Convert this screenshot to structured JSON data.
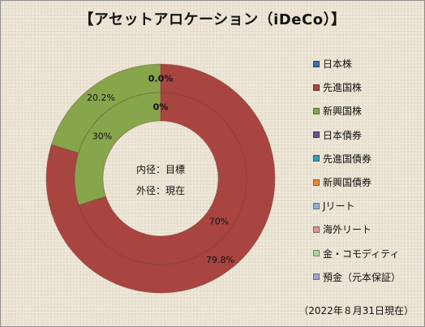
{
  "chart_data": {
    "type": "pie",
    "title": "【アセットアロケーション（iDeCo）】",
    "legend_position": "right",
    "categories": [
      "日本株",
      "先進国株",
      "新興国株",
      "日本債券",
      "先進国債券",
      "新興国債券",
      "Jリート",
      "海外リート",
      "金・コモディティ",
      "預金（元本保証）"
    ],
    "colors": [
      "#3f6fa8",
      "#a94541",
      "#87a54a",
      "#6c4f8e",
      "#3a9bbf",
      "#e38a3b",
      "#94aed6",
      "#d99693",
      "#b4d29b",
      "#a3a3d1"
    ],
    "series": [
      {
        "ring": "outer",
        "values": [
          0.0,
          79.8,
          20.2,
          0,
          0,
          0,
          0,
          0,
          0,
          0
        ],
        "labels": [
          "0.0%",
          "79.8%",
          "20.2%"
        ]
      },
      {
        "ring": "inner",
        "values": [
          0,
          70,
          30,
          0,
          0,
          0,
          0,
          0,
          0,
          0
        ],
        "labels": [
          "0%",
          "70%",
          "30%"
        ]
      }
    ],
    "center_text": [
      "内径：目標",
      "外径：現在"
    ],
    "footnote": "（2022年８月31日現在）"
  }
}
